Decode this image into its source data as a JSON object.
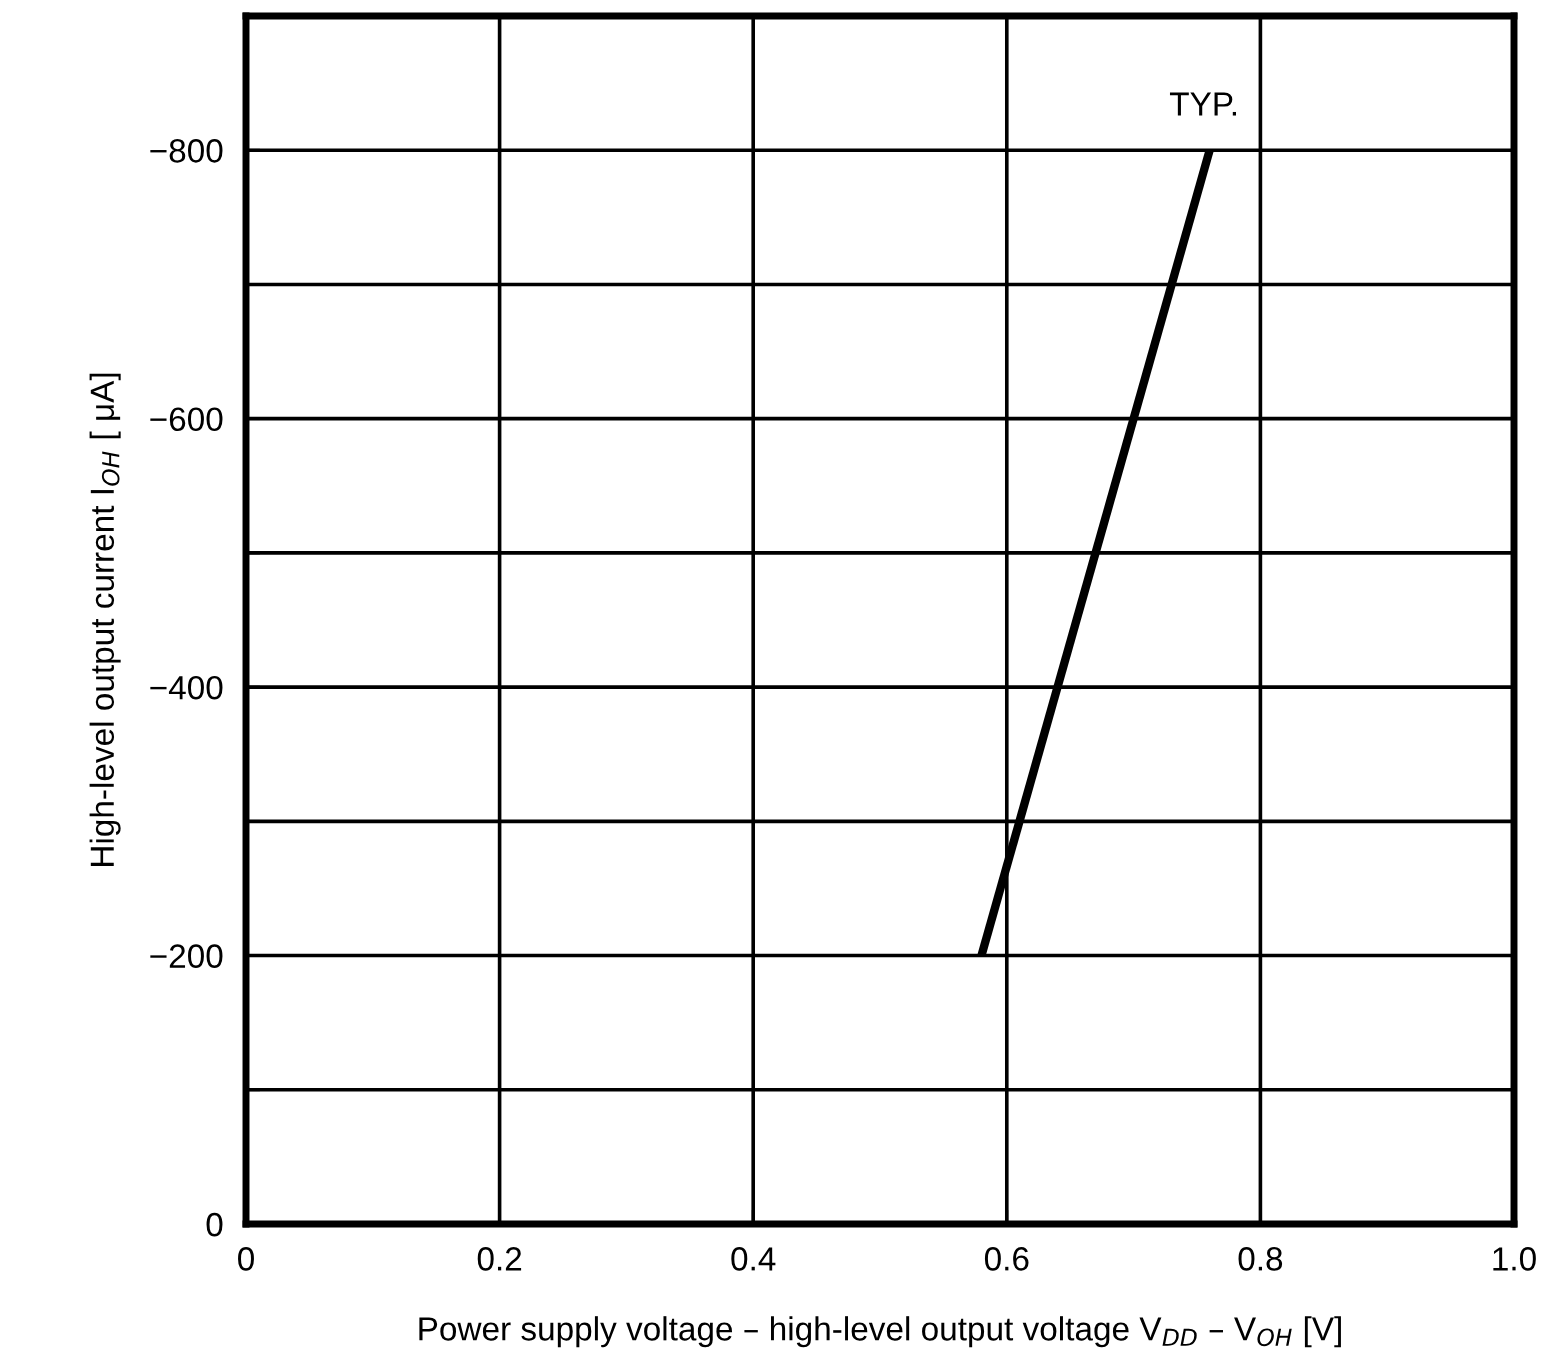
{
  "chart_data": {
    "type": "line",
    "xlabel": "Power supply voltage – high-level output voltage V$_{DD}$ – V$_{OH}$ [V]",
    "ylabel": "High-level output current I$_{OH}$ [ μA]",
    "x": [
      0.58,
      0.76
    ],
    "series": [
      {
        "color": "#000000",
        "values": [
          -200,
          -800
        ]
      }
    ],
    "xlim": [
      0,
      1.0
    ],
    "xticks": [
      0,
      0.2,
      0.4,
      0.6,
      0.8,
      {
        "value": 1.0,
        "label": "1.0"
      }
    ],
    "ylim": [
      0,
      -900
    ],
    "yticks": [
      0,
      {
        "value": -100,
        "label": null
      },
      -200,
      {
        "value": -300,
        "label": null
      },
      -400,
      {
        "value": -500,
        "label": null
      },
      -600,
      {
        "value": -700,
        "label": null
      },
      -800,
      {
        "value": -900,
        "label": null
      }
    ],
    "grid": true,
    "marker": "none",
    "line_style": "solid",
    "annotations": [
      {
        "text": "TYP.",
        "x": 0.76,
        "y": -800
      }
    ]
  }
}
